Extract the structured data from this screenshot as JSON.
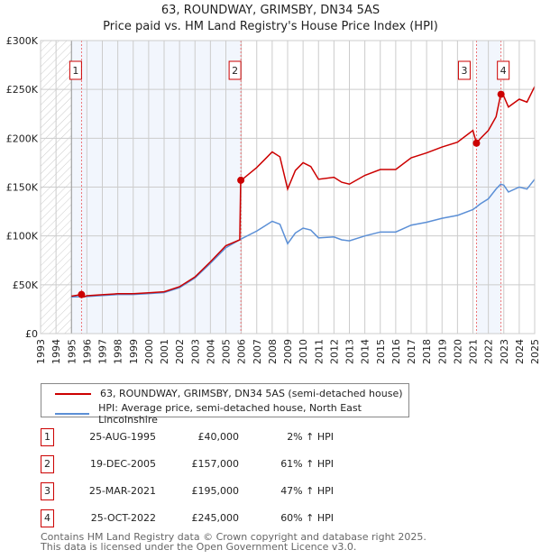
{
  "title": "63, ROUNDWAY, GRIMSBY, DN34 5AS",
  "subtitle": "Price paid vs. HM Land Registry's House Price Index (HPI)",
  "chart_data": {
    "type": "line",
    "xlim": [
      1993,
      2025
    ],
    "ylim": [
      0,
      300000
    ],
    "yticks": [
      {
        "v": 0,
        "label": "£0"
      },
      {
        "v": 50000,
        "label": "£50K"
      },
      {
        "v": 100000,
        "label": "£100K"
      },
      {
        "v": 150000,
        "label": "£150K"
      },
      {
        "v": 200000,
        "label": "£200K"
      },
      {
        "v": 250000,
        "label": "£250K"
      },
      {
        "v": 300000,
        "label": "£300K"
      }
    ],
    "xticks": [
      "1993",
      "1994",
      "1995",
      "1996",
      "1997",
      "1998",
      "1999",
      "2000",
      "2001",
      "2002",
      "2003",
      "2004",
      "2005",
      "2006",
      "2007",
      "2008",
      "2009",
      "2010",
      "2011",
      "2012",
      "2013",
      "2014",
      "2015",
      "2016",
      "2017",
      "2018",
      "2019",
      "2020",
      "2021",
      "2022",
      "2023",
      "2024",
      "2025"
    ],
    "grid": true,
    "series": [
      {
        "name": "63, ROUNDWAY, GRIMSBY, DN34 5AS (semi-detached house)",
        "color": "#cc0000",
        "x": [
          1995,
          1995.65,
          1995.8,
          1996,
          1997,
          1998,
          1999,
          2000,
          2001,
          2002,
          2003,
          2004,
          2005,
          2005.9,
          2005.96,
          2006,
          2007,
          2007.5,
          2008,
          2008.5,
          2009,
          2009.5,
          2010,
          2010.5,
          2011,
          2012,
          2012.5,
          2013,
          2014,
          2015,
          2016,
          2017,
          2018,
          2019,
          2020,
          2021,
          2021.23,
          2021.5,
          2022,
          2022.5,
          2022.8,
          2023,
          2023.3,
          2024,
          2024.5,
          2025
        ],
        "y": [
          38300,
          40000,
          37500,
          38800,
          39800,
          40800,
          40800,
          41800,
          42800,
          48000,
          58000,
          73500,
          90000,
          96000,
          157000,
          157000,
          170000,
          178000,
          186000,
          181000,
          148000,
          167000,
          175000,
          171000,
          158000,
          160000,
          155000,
          153000,
          162000,
          168000,
          168000,
          180000,
          185000,
          191000,
          196000,
          208000,
          195000,
          200000,
          208000,
          222000,
          245000,
          243000,
          232000,
          240000,
          237000,
          253000
        ]
      },
      {
        "name": "HPI: Average price, semi-detached house, North East Lincolnshire",
        "color": "#5b8fd6",
        "x": [
          1995,
          1996,
          1997,
          1998,
          1999,
          2000,
          2001,
          2002,
          2003,
          2004,
          2005,
          2006,
          2007,
          2007.5,
          2008,
          2008.5,
          2009,
          2009.5,
          2010,
          2010.5,
          2011,
          2012,
          2012.5,
          2013,
          2014,
          2015,
          2016,
          2017,
          2018,
          2019,
          2020,
          2021,
          2021.5,
          2022,
          2022.5,
          2022.8,
          2023,
          2023.3,
          2024,
          2024.5,
          2025
        ],
        "y": [
          37500,
          38000,
          39000,
          40000,
          40000,
          41000,
          42000,
          47000,
          57000,
          72000,
          88000,
          97000,
          105000,
          110000,
          115000,
          112000,
          92000,
          103000,
          108000,
          106000,
          98000,
          99000,
          96000,
          95000,
          100000,
          104000,
          104000,
          111000,
          114000,
          118000,
          121000,
          127000,
          133000,
          138000,
          148000,
          153000,
          152000,
          145000,
          150000,
          148000,
          158000
        ]
      }
    ],
    "sales": [
      {
        "label": "1",
        "x": 1995.65,
        "y": 40000,
        "date": "25-AUG-1995",
        "price": "£40,000",
        "hpi": "2% ↑ HPI"
      },
      {
        "label": "2",
        "x": 2005.97,
        "y": 157000,
        "date": "19-DEC-2005",
        "price": "£157,000",
        "hpi": "61% ↑ HPI"
      },
      {
        "label": "3",
        "x": 2021.23,
        "y": 195000,
        "date": "25-MAR-2021",
        "price": "£195,000",
        "hpi": "47% ↑ HPI"
      },
      {
        "label": "4",
        "x": 2022.82,
        "y": 245000,
        "date": "25-OCT-2022",
        "price": "£245,000",
        "hpi": "60% ↑ HPI"
      }
    ],
    "legend": "bottom"
  },
  "footer": {
    "line1": "Contains HM Land Registry data © Crown copyright and database right 2025.",
    "line2": "This data is licensed under the Open Government Licence v3.0."
  }
}
